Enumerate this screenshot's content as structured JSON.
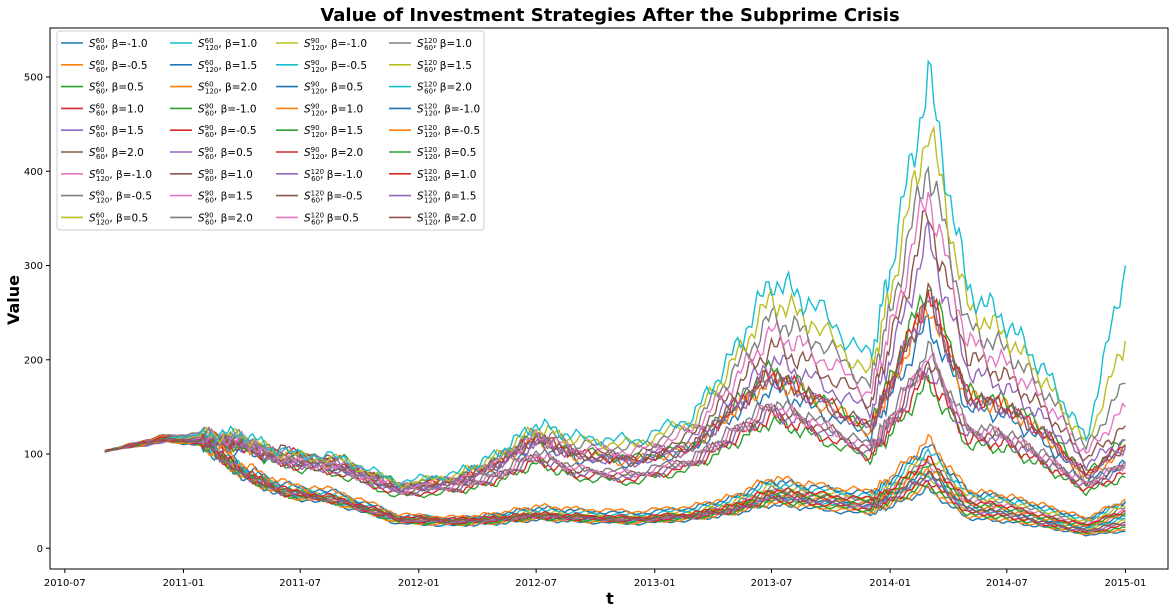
{
  "chart_data": {
    "type": "line",
    "title": "Value of Investment Strategies After the Subprime Crisis",
    "xlabel": "t",
    "ylabel": "Value",
    "x_ticks": [
      "2010-07",
      "2011-01",
      "2011-07",
      "2012-01",
      "2012-07",
      "2013-01",
      "2013-07",
      "2014-01",
      "2014-07",
      "2015-01"
    ],
    "y_ticks": [
      0,
      100,
      200,
      300,
      400,
      500
    ],
    "xlim": [
      "2010-06-08",
      "2015-03-08"
    ],
    "ylim": [
      -22,
      552
    ],
    "grid": false,
    "legend_position": "top-left",
    "x": [
      "2010-09",
      "2010-12",
      "2011-02",
      "2011-04",
      "2011-06",
      "2011-09",
      "2011-12",
      "2012-03",
      "2012-05",
      "2012-07",
      "2012-09",
      "2012-12",
      "2013-03",
      "2013-05",
      "2013-07",
      "2013-09",
      "2013-12",
      "2014-01",
      "2014-03",
      "2014-05",
      "2014-07",
      "2014-09",
      "2014-11",
      "2015-01"
    ],
    "series": [
      {
        "name": "S^{60}_{60}, β=-1.0",
        "color": "#1f77b4",
        "values": [
          103,
          114,
          110,
          102,
          95,
          85,
          62,
          70,
          85,
          110,
          95,
          90,
          105,
          140,
          170,
          150,
          120,
          160,
          240,
          150,
          140,
          110,
          70,
          90
        ]
      },
      {
        "name": "S^{60}_{60}, β=-0.5",
        "color": "#ff7f0e",
        "values": [
          103,
          116,
          112,
          105,
          98,
          88,
          65,
          72,
          88,
          115,
          98,
          92,
          108,
          145,
          180,
          160,
          125,
          170,
          260,
          160,
          150,
          118,
          75,
          105
        ]
      },
      {
        "name": "S^{60}_{60}, β=0.5",
        "color": "#2ca02c",
        "values": [
          103,
          118,
          116,
          110,
          100,
          95,
          68,
          75,
          92,
          120,
          102,
          95,
          110,
          150,
          190,
          165,
          130,
          180,
          280,
          165,
          155,
          125,
          80,
          115
        ]
      },
      {
        "name": "S^{60}_{60}, β=1.0",
        "color": "#d62728",
        "values": [
          103,
          118,
          115,
          108,
          102,
          92,
          66,
          72,
          90,
          118,
          100,
          93,
          108,
          148,
          185,
          162,
          128,
          175,
          270,
          162,
          150,
          120,
          78,
          110
        ]
      },
      {
        "name": "S^{60}_{60}, β=1.5",
        "color": "#9467bd",
        "values": [
          103,
          119,
          116,
          109,
          103,
          90,
          64,
          70,
          88,
          116,
          98,
          91,
          106,
          146,
          182,
          160,
          126,
          172,
          265,
          158,
          148,
          118,
          76,
          108
        ]
      },
      {
        "name": "S^{60}_{60}, β=2.0",
        "color": "#8c564b",
        "values": [
          103,
          120,
          117,
          110,
          104,
          91,
          65,
          71,
          89,
          117,
          99,
          92,
          107,
          147,
          184,
          161,
          127,
          174,
          268,
          160,
          149,
          119,
          77,
          109
        ]
      },
      {
        "name": "S^{60}_{120}, β=-1.0",
        "color": "#e377c2",
        "values": [
          103,
          115,
          112,
          80,
          60,
          50,
          30,
          28,
          30,
          35,
          32,
          30,
          35,
          45,
          60,
          55,
          50,
          60,
          90,
          50,
          45,
          35,
          25,
          40
        ]
      },
      {
        "name": "S^{60}_{120}, β=-0.5",
        "color": "#7f7f7f",
        "values": [
          103,
          116,
          113,
          82,
          62,
          52,
          32,
          29,
          32,
          37,
          34,
          32,
          37,
          47,
          63,
          58,
          52,
          63,
          95,
          53,
          48,
          37,
          27,
          43
        ]
      },
      {
        "name": "S^{60}_{120}, β=0.5",
        "color": "#bcbd22",
        "values": [
          103,
          117,
          114,
          84,
          64,
          54,
          33,
          30,
          33,
          39,
          36,
          33,
          39,
          49,
          66,
          60,
          54,
          66,
          100,
          56,
          50,
          39,
          28,
          45
        ]
      },
      {
        "name": "S^{60}_{120}, β=1.0",
        "color": "#17becf",
        "values": [
          103,
          118,
          115,
          86,
          66,
          56,
          34,
          31,
          35,
          41,
          38,
          35,
          41,
          51,
          69,
          63,
          56,
          69,
          105,
          58,
          52,
          41,
          30,
          48
        ]
      },
      {
        "name": "S^{60}_{120}, β=1.5",
        "color": "#1f77b4",
        "values": [
          103,
          118,
          116,
          88,
          68,
          58,
          35,
          32,
          36,
          43,
          40,
          37,
          43,
          53,
          72,
          65,
          58,
          72,
          110,
          60,
          54,
          43,
          31,
          50
        ]
      },
      {
        "name": "S^{60}_{120}, β=2.0",
        "color": "#ff7f0e",
        "values": [
          103,
          119,
          117,
          90,
          70,
          60,
          36,
          33,
          37,
          45,
          42,
          39,
          45,
          55,
          75,
          68,
          60,
          75,
          115,
          62,
          56,
          45,
          32,
          52
        ]
      },
      {
        "name": "S^{90}_{60}, β=-1.0",
        "color": "#2ca02c",
        "values": [
          103,
          114,
          118,
          108,
          88,
          78,
          55,
          60,
          70,
          90,
          75,
          70,
          85,
          110,
          135,
          120,
          95,
          120,
          175,
          110,
          105,
          85,
          60,
          75
        ]
      },
      {
        "name": "S^{90}_{60}, β=-0.5",
        "color": "#d62728",
        "values": [
          103,
          115,
          119,
          110,
          90,
          80,
          57,
          62,
          72,
          93,
          78,
          73,
          88,
          115,
          140,
          125,
          98,
          125,
          185,
          115,
          110,
          88,
          62,
          80
        ]
      },
      {
        "name": "S^{90}_{60}, β=0.5",
        "color": "#9467bd",
        "values": [
          103,
          116,
          120,
          112,
          92,
          82,
          59,
          64,
          75,
          96,
          80,
          75,
          90,
          118,
          145,
          130,
          102,
          130,
          195,
          120,
          115,
          92,
          65,
          85
        ]
      },
      {
        "name": "S^{90}_{60}, β=1.0",
        "color": "#8c564b",
        "values": [
          103,
          117,
          121,
          113,
          93,
          83,
          60,
          65,
          76,
          98,
          82,
          77,
          92,
          120,
          148,
          133,
          104,
          133,
          200,
          123,
          118,
          94,
          66,
          88
        ]
      },
      {
        "name": "S^{90}_{60}, β=1.5",
        "color": "#e377c2",
        "values": [
          103,
          118,
          122,
          114,
          94,
          84,
          61,
          66,
          77,
          100,
          84,
          78,
          94,
          122,
          151,
          135,
          106,
          136,
          205,
          126,
          120,
          96,
          68,
          90
        ]
      },
      {
        "name": "S^{90}_{60}, β=2.0",
        "color": "#7f7f7f",
        "values": [
          103,
          118,
          123,
          115,
          95,
          85,
          62,
          67,
          78,
          102,
          85,
          80,
          95,
          125,
          155,
          138,
          108,
          140,
          210,
          128,
          122,
          98,
          69,
          92
        ]
      },
      {
        "name": "S^{90}_{120}, β=-1.0",
        "color": "#bcbd22",
        "values": [
          103,
          115,
          110,
          78,
          58,
          48,
          28,
          26,
          28,
          32,
          30,
          28,
          32,
          40,
          52,
          48,
          42,
          52,
          75,
          40,
          35,
          28,
          20,
          30
        ]
      },
      {
        "name": "S^{90}_{120}, β=-0.5",
        "color": "#17becf",
        "values": [
          103,
          116,
          111,
          79,
          59,
          49,
          29,
          27,
          29,
          33,
          31,
          29,
          33,
          41,
          54,
          50,
          44,
          54,
          78,
          42,
          37,
          29,
          21,
          32
        ]
      },
      {
        "name": "S^{90}_{120}, β=0.5",
        "color": "#1f77b4",
        "values": [
          103,
          116,
          112,
          80,
          60,
          50,
          30,
          28,
          30,
          34,
          32,
          30,
          34,
          42,
          56,
          52,
          46,
          56,
          82,
          44,
          39,
          30,
          22,
          34
        ]
      },
      {
        "name": "S^{90}_{120}, β=1.0",
        "color": "#ff7f0e",
        "values": [
          103,
          117,
          113,
          81,
          61,
          51,
          31,
          29,
          31,
          35,
          33,
          31,
          35,
          43,
          58,
          54,
          48,
          58,
          86,
          46,
          41,
          31,
          23,
          36
        ]
      },
      {
        "name": "S^{90}_{120}, β=1.5",
        "color": "#2ca02c",
        "values": [
          103,
          117,
          114,
          82,
          62,
          52,
          32,
          30,
          32,
          36,
          34,
          32,
          36,
          44,
          60,
          56,
          50,
          60,
          90,
          48,
          43,
          32,
          24,
          38
        ]
      },
      {
        "name": "S^{90}_{120}, β=2.0",
        "color": "#d62728",
        "values": [
          103,
          118,
          115,
          83,
          63,
          53,
          33,
          31,
          33,
          37,
          35,
          33,
          37,
          45,
          62,
          58,
          52,
          62,
          94,
          50,
          45,
          33,
          25,
          40
        ]
      },
      {
        "name": "S^{120}_{60}, β=-1.0",
        "color": "#9467bd",
        "values": [
          103,
          112,
          116,
          112,
          92,
          86,
          62,
          70,
          88,
          112,
          98,
          95,
          115,
          155,
          200,
          180,
          145,
          200,
          330,
          190,
          170,
          135,
          90,
          115
        ]
      },
      {
        "name": "S^{120}_{60}, β=-0.5",
        "color": "#8c564b",
        "values": [
          103,
          113,
          117,
          114,
          94,
          88,
          64,
          72,
          90,
          116,
          102,
          98,
          120,
          165,
          215,
          195,
          155,
          215,
          355,
          205,
          182,
          145,
          95,
          130
        ]
      },
      {
        "name": "S^{120}_{60}, β=0.5",
        "color": "#e377c2",
        "values": [
          103,
          114,
          118,
          116,
          96,
          90,
          66,
          74,
          93,
          120,
          106,
          102,
          125,
          175,
          230,
          210,
          165,
          230,
          380,
          220,
          195,
          155,
          100,
          150
        ]
      },
      {
        "name": "S^{120}_{60}, β=1.0",
        "color": "#7f7f7f",
        "values": [
          103,
          114,
          119,
          118,
          98,
          92,
          67,
          76,
          95,
          124,
          110,
          106,
          130,
          185,
          245,
          225,
          175,
          250,
          410,
          235,
          210,
          165,
          105,
          175
        ]
      },
      {
        "name": "S^{120}_{60}, β=1.5",
        "color": "#bcbd22",
        "values": [
          103,
          115,
          120,
          120,
          100,
          94,
          68,
          78,
          98,
          128,
          114,
          110,
          135,
          195,
          265,
          240,
          185,
          270,
          450,
          255,
          225,
          175,
          110,
          220
        ]
      },
      {
        "name": "S^{120}_{60}, β=2.0",
        "color": "#17becf",
        "values": [
          103,
          116,
          121,
          122,
          102,
          96,
          70,
          80,
          100,
          132,
          118,
          114,
          140,
          205,
          285,
          260,
          200,
          295,
          500,
          275,
          240,
          185,
          115,
          300
        ]
      },
      {
        "name": "S^{120}_{120}, β=-1.0",
        "color": "#1f77b4",
        "values": [
          103,
          114,
          108,
          76,
          56,
          46,
          26,
          24,
          26,
          30,
          28,
          26,
          30,
          36,
          46,
          42,
          36,
          44,
          62,
          32,
          28,
          22,
          14,
          18
        ]
      },
      {
        "name": "S^{120}_{120}, β=-0.5",
        "color": "#ff7f0e",
        "values": [
          103,
          114,
          109,
          77,
          57,
          47,
          27,
          25,
          27,
          31,
          29,
          27,
          31,
          37,
          48,
          44,
          38,
          46,
          65,
          34,
          30,
          23,
          15,
          20
        ]
      },
      {
        "name": "S^{120}_{120}, β=0.5",
        "color": "#2ca02c",
        "values": [
          103,
          115,
          110,
          78,
          58,
          48,
          28,
          26,
          28,
          32,
          30,
          28,
          32,
          38,
          50,
          46,
          40,
          48,
          68,
          36,
          32,
          24,
          16,
          22
        ]
      },
      {
        "name": "S^{120}_{120}, β=1.0",
        "color": "#d62728",
        "values": [
          103,
          115,
          111,
          79,
          59,
          49,
          29,
          27,
          29,
          33,
          31,
          29,
          33,
          39,
          52,
          48,
          42,
          50,
          72,
          38,
          34,
          25,
          17,
          24
        ]
      },
      {
        "name": "S^{120}_{120}, β=1.5",
        "color": "#9467bd",
        "values": [
          103,
          116,
          112,
          80,
          60,
          50,
          30,
          28,
          30,
          34,
          32,
          30,
          34,
          40,
          54,
          50,
          44,
          52,
          76,
          40,
          36,
          26,
          18,
          26
        ]
      },
      {
        "name": "S^{120}_{120}, β=2.0",
        "color": "#8c564b",
        "values": [
          103,
          116,
          113,
          81,
          61,
          51,
          31,
          29,
          31,
          35,
          33,
          31,
          35,
          41,
          56,
          52,
          46,
          54,
          80,
          42,
          38,
          27,
          19,
          28
        ]
      }
    ]
  }
}
